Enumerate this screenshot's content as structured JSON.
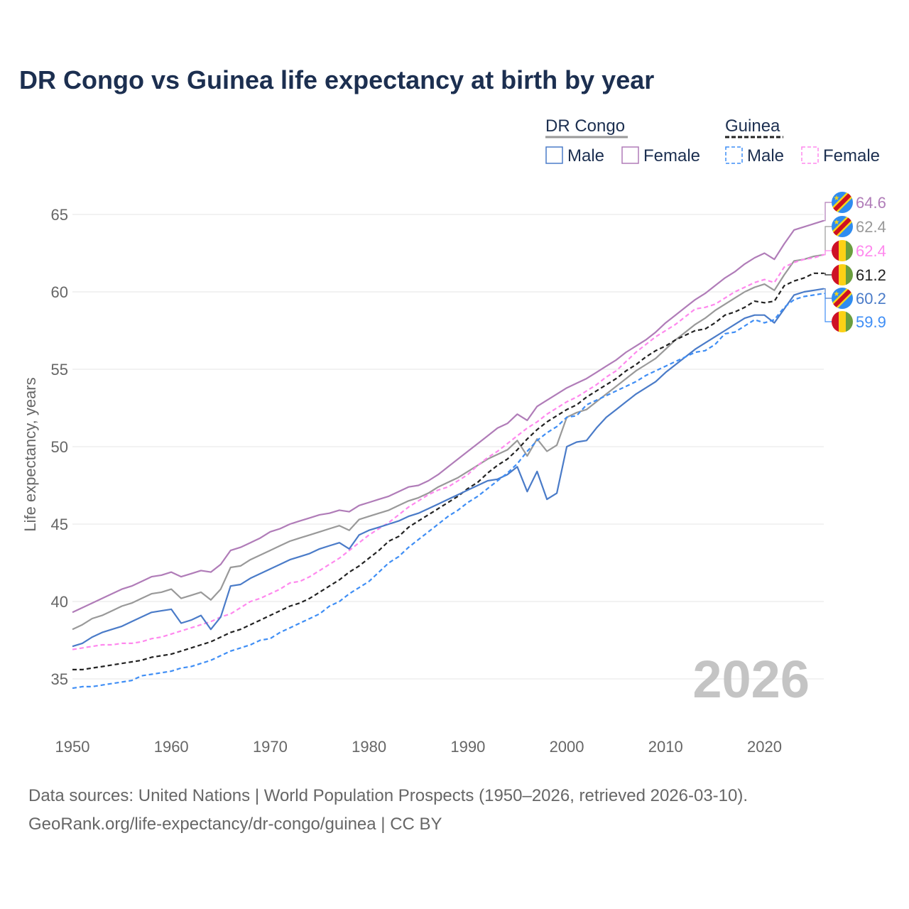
{
  "chart_data": {
    "type": "line",
    "title": "DR Congo vs Guinea life expectancy at birth by year",
    "xlabel": "",
    "ylabel": "Life expectancy, years",
    "xlim": [
      1950,
      2026
    ],
    "ylim": [
      33,
      66
    ],
    "x_ticks": [
      "1950",
      "1960",
      "1970",
      "1980",
      "1990",
      "2000",
      "2010",
      "2020"
    ],
    "y_ticks": [
      "35",
      "40",
      "45",
      "50",
      "55",
      "60",
      "65"
    ],
    "grid": true,
    "year_watermark": "2026",
    "legend": {
      "placement": "top-right",
      "groups": [
        {
          "label": "DR Congo",
          "items": [
            "Male",
            "Female"
          ]
        },
        {
          "label": "Guinea",
          "items": [
            "Male",
            "Female"
          ]
        }
      ]
    },
    "x_start": 1950,
    "series": [
      {
        "key": "drc_female",
        "name": "DR Congo Female",
        "color": "#b07cb8",
        "dashed": false,
        "flag": "drc",
        "end_label": "64.6",
        "values": [
          39.3,
          39.6,
          39.9,
          40.2,
          40.5,
          40.8,
          41.0,
          41.3,
          41.6,
          41.7,
          41.9,
          41.6,
          41.8,
          42.0,
          41.9,
          42.4,
          43.3,
          43.5,
          43.8,
          44.1,
          44.5,
          44.7,
          45.0,
          45.2,
          45.4,
          45.6,
          45.7,
          45.9,
          45.8,
          46.2,
          46.4,
          46.6,
          46.8,
          47.1,
          47.4,
          47.5,
          47.8,
          48.2,
          48.7,
          49.2,
          49.7,
          50.2,
          50.7,
          51.2,
          51.5,
          52.1,
          51.7,
          52.6,
          53.0,
          53.4,
          53.8,
          54.1,
          54.4,
          54.8,
          55.2,
          55.6,
          56.1,
          56.5,
          56.9,
          57.4,
          58.0,
          58.5,
          59.0,
          59.5,
          59.9,
          60.4,
          60.9,
          61.3,
          61.8,
          62.2,
          62.5,
          62.1,
          63.1,
          64.0,
          64.2,
          64.4,
          64.6
        ]
      },
      {
        "key": "drc_total",
        "name": "DR Congo",
        "color": "#999999",
        "dashed": false,
        "flag": "drc",
        "end_label": "62.4",
        "values": [
          38.2,
          38.5,
          38.9,
          39.1,
          39.4,
          39.7,
          39.9,
          40.2,
          40.5,
          40.6,
          40.8,
          40.2,
          40.4,
          40.6,
          40.1,
          40.8,
          42.2,
          42.3,
          42.7,
          43.0,
          43.3,
          43.6,
          43.9,
          44.1,
          44.3,
          44.5,
          44.7,
          44.9,
          44.6,
          45.3,
          45.5,
          45.7,
          45.9,
          46.2,
          46.5,
          46.7,
          47.0,
          47.4,
          47.7,
          48.0,
          48.4,
          48.8,
          49.2,
          49.5,
          49.8,
          50.4,
          49.4,
          50.5,
          49.7,
          50.1,
          51.9,
          52.2,
          52.4,
          52.9,
          53.4,
          53.9,
          54.4,
          54.9,
          55.3,
          55.7,
          56.3,
          56.9,
          57.4,
          57.9,
          58.3,
          58.8,
          59.2,
          59.6,
          60.0,
          60.3,
          60.5,
          60.1,
          61.1,
          62.0,
          62.1,
          62.3,
          62.4
        ]
      },
      {
        "key": "gin_female",
        "name": "Guinea Female",
        "color": "#ff88ee",
        "dashed": true,
        "flag": "guinea",
        "end_label": "62.4",
        "values": [
          36.9,
          37.0,
          37.1,
          37.2,
          37.2,
          37.3,
          37.3,
          37.4,
          37.6,
          37.7,
          37.9,
          38.1,
          38.3,
          38.5,
          38.7,
          39.0,
          39.2,
          39.6,
          40.0,
          40.2,
          40.5,
          40.8,
          41.2,
          41.3,
          41.6,
          42.0,
          42.4,
          42.8,
          43.3,
          43.8,
          44.3,
          44.7,
          45.1,
          45.6,
          46.1,
          46.5,
          46.9,
          47.2,
          47.4,
          47.8,
          48.2,
          48.8,
          49.3,
          49.7,
          50.2,
          50.7,
          51.2,
          51.6,
          52.1,
          52.5,
          52.9,
          53.2,
          53.6,
          54.0,
          54.5,
          54.9,
          55.5,
          56.1,
          56.6,
          57.1,
          57.5,
          57.9,
          58.4,
          58.9,
          59.0,
          59.2,
          59.6,
          60.0,
          60.3,
          60.6,
          60.8,
          60.6,
          61.6,
          61.9,
          62.1,
          62.2,
          62.4
        ]
      },
      {
        "key": "gin_total",
        "name": "Guinea",
        "color": "#222222",
        "dashed": true,
        "flag": "guinea",
        "end_label": "61.2",
        "values": [
          35.6,
          35.6,
          35.7,
          35.8,
          35.9,
          36.0,
          36.1,
          36.2,
          36.4,
          36.5,
          36.6,
          36.8,
          37.0,
          37.2,
          37.4,
          37.7,
          38.0,
          38.2,
          38.5,
          38.8,
          39.1,
          39.4,
          39.7,
          39.9,
          40.2,
          40.6,
          41.0,
          41.4,
          41.9,
          42.3,
          42.8,
          43.3,
          43.9,
          44.2,
          44.8,
          45.2,
          45.6,
          46.0,
          46.4,
          46.8,
          47.3,
          47.7,
          48.3,
          48.8,
          49.2,
          49.8,
          50.5,
          51.1,
          51.6,
          52.0,
          52.4,
          52.7,
          53.2,
          53.6,
          54.0,
          54.4,
          54.9,
          55.3,
          55.8,
          56.2,
          56.5,
          56.9,
          57.2,
          57.5,
          57.6,
          58.0,
          58.5,
          58.7,
          59.0,
          59.4,
          59.3,
          59.4,
          60.4,
          60.7,
          60.9,
          61.2,
          61.2
        ]
      },
      {
        "key": "drc_male",
        "name": "DR Congo Male",
        "color": "#4a7bc8",
        "dashed": false,
        "flag": "drc",
        "end_label": "60.2",
        "values": [
          37.1,
          37.3,
          37.7,
          38.0,
          38.2,
          38.4,
          38.7,
          39.0,
          39.3,
          39.4,
          39.5,
          38.6,
          38.8,
          39.1,
          38.2,
          39.0,
          41.0,
          41.1,
          41.5,
          41.8,
          42.1,
          42.4,
          42.7,
          42.9,
          43.1,
          43.4,
          43.6,
          43.8,
          43.4,
          44.3,
          44.6,
          44.8,
          45.0,
          45.2,
          45.5,
          45.7,
          46.0,
          46.3,
          46.6,
          46.9,
          47.2,
          47.5,
          47.8,
          47.9,
          48.2,
          48.7,
          47.1,
          48.4,
          46.6,
          47.0,
          50.0,
          50.3,
          50.4,
          51.2,
          51.9,
          52.4,
          52.9,
          53.4,
          53.8,
          54.2,
          54.8,
          55.3,
          55.8,
          56.3,
          56.7,
          57.1,
          57.5,
          57.9,
          58.3,
          58.5,
          58.5,
          58.0,
          58.9,
          59.8,
          60.0,
          60.1,
          60.2
        ]
      },
      {
        "key": "gin_male",
        "name": "Guinea Male",
        "color": "#3f8ef5",
        "dashed": true,
        "flag": "guinea",
        "end_label": "59.9",
        "values": [
          34.4,
          34.5,
          34.5,
          34.6,
          34.7,
          34.8,
          34.9,
          35.2,
          35.3,
          35.4,
          35.5,
          35.7,
          35.8,
          36.0,
          36.2,
          36.5,
          36.8,
          37.0,
          37.2,
          37.5,
          37.6,
          38.0,
          38.3,
          38.6,
          38.9,
          39.2,
          39.7,
          40.0,
          40.5,
          40.9,
          41.3,
          41.9,
          42.5,
          42.9,
          43.5,
          44.0,
          44.5,
          45.0,
          45.5,
          45.9,
          46.4,
          46.8,
          47.3,
          47.8,
          48.3,
          48.9,
          49.7,
          50.4,
          50.9,
          51.3,
          51.9,
          52.0,
          52.7,
          53.0,
          53.3,
          53.6,
          53.9,
          54.2,
          54.6,
          54.9,
          55.2,
          55.5,
          55.8,
          56.1,
          56.2,
          56.6,
          57.3,
          57.4,
          57.8,
          58.2,
          58.0,
          58.2,
          59.0,
          59.5,
          59.7,
          59.8,
          59.9
        ]
      }
    ]
  },
  "footer": {
    "line1": "Data sources: United Nations | World Population Prospects (1950–2026, retrieved 2026-03-10).",
    "line2": "GeoRank.org/life-expectancy/dr-congo/guinea | CC BY"
  }
}
